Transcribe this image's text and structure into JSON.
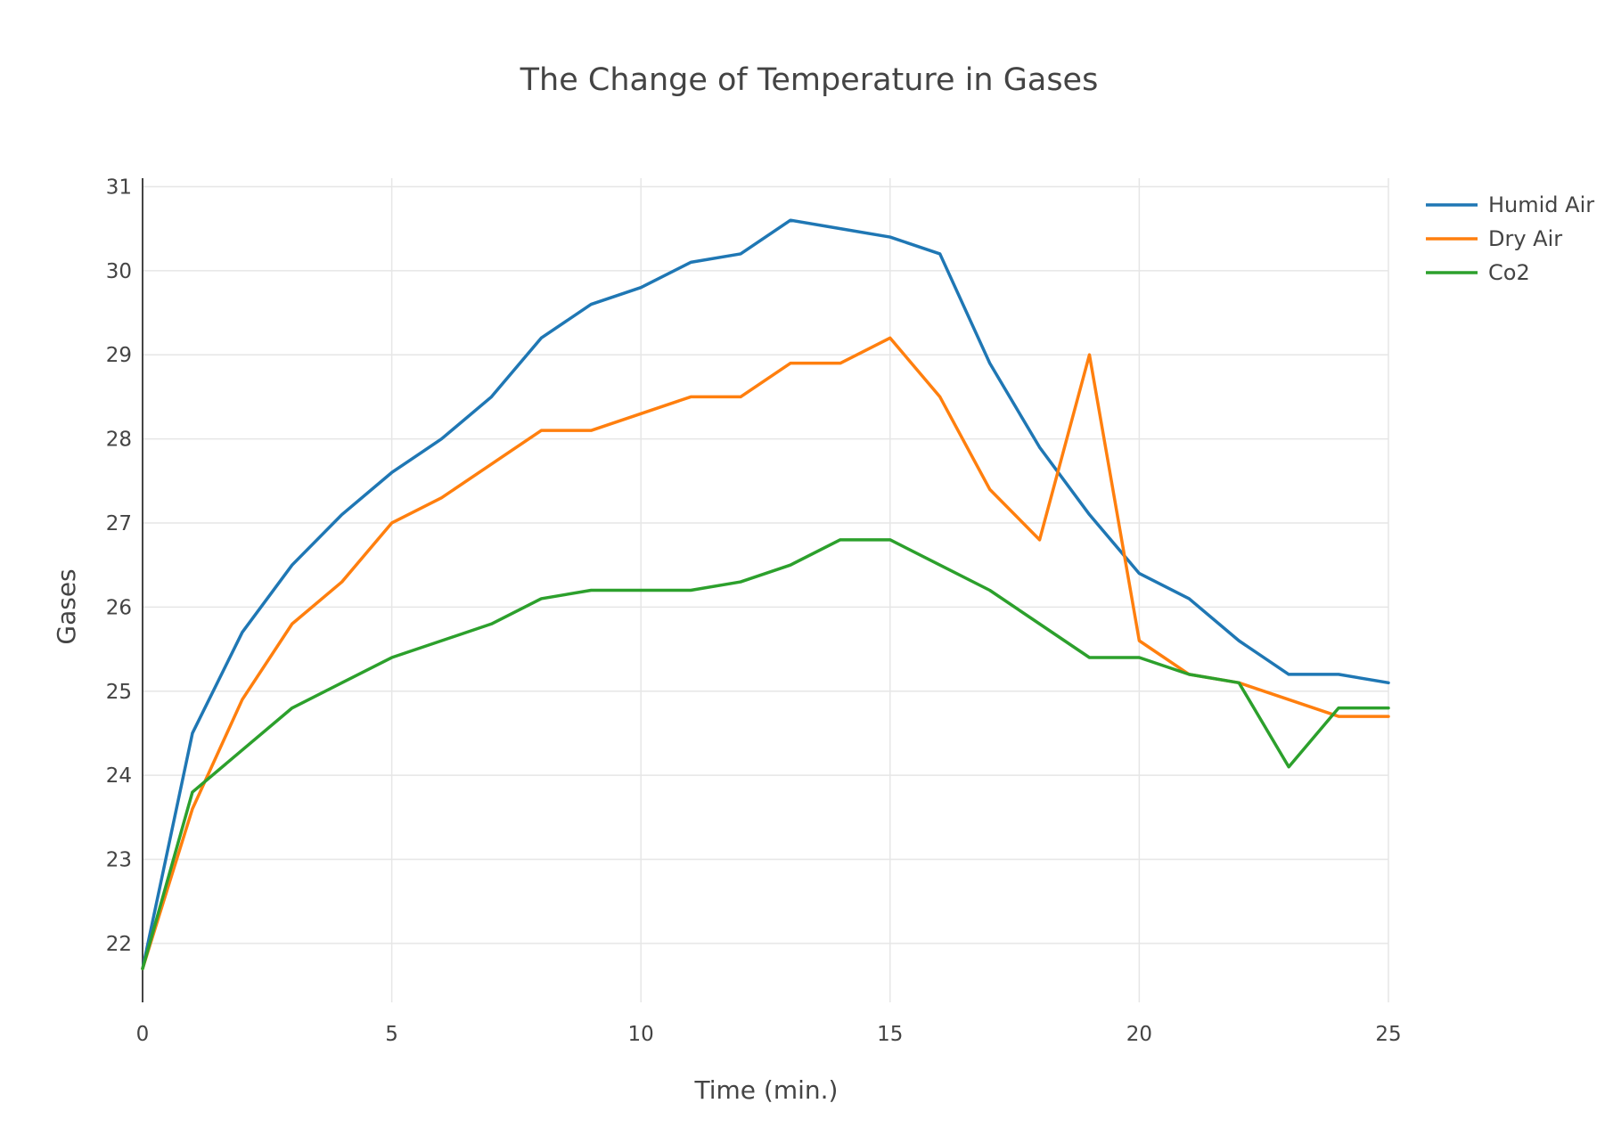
{
  "chart_data": {
    "type": "line",
    "title": "The Change of Temperature in Gases",
    "xlabel": "Time (min.)",
    "ylabel": "Gases",
    "xlim": [
      0,
      25
    ],
    "ylim": [
      21.3,
      31.1
    ],
    "x_ticks": [
      0,
      5,
      10,
      15,
      20,
      25
    ],
    "y_ticks": [
      22,
      23,
      24,
      25,
      26,
      27,
      28,
      29,
      30,
      31
    ],
    "grid": true,
    "legend_position": "top-right",
    "x": [
      0,
      1,
      2,
      3,
      4,
      5,
      6,
      7,
      8,
      9,
      10,
      11,
      12,
      13,
      14,
      15,
      16,
      17,
      18,
      19,
      20,
      21,
      22,
      23,
      24,
      25
    ],
    "series": [
      {
        "name": "Humid Air",
        "color": "#1f77b4",
        "values": [
          21.7,
          24.5,
          25.7,
          26.5,
          27.1,
          27.6,
          28.0,
          28.5,
          29.2,
          29.6,
          29.8,
          30.1,
          30.2,
          30.6,
          30.5,
          30.4,
          30.2,
          28.9,
          27.9,
          27.1,
          26.4,
          26.1,
          25.6,
          25.2,
          25.2,
          25.1
        ]
      },
      {
        "name": "Dry Air",
        "color": "#ff7f0e",
        "values": [
          21.7,
          23.6,
          24.9,
          25.8,
          26.3,
          27.0,
          27.3,
          27.7,
          28.1,
          28.1,
          28.3,
          28.5,
          28.5,
          28.9,
          28.9,
          29.2,
          28.5,
          27.4,
          26.8,
          29.0,
          25.6,
          25.2,
          25.1,
          24.9,
          24.7,
          24.7
        ]
      },
      {
        "name": "Co2",
        "color": "#2ca02c",
        "values": [
          21.7,
          23.8,
          24.3,
          24.8,
          25.1,
          25.4,
          25.6,
          25.8,
          26.1,
          26.2,
          26.2,
          26.2,
          26.3,
          26.5,
          26.8,
          26.8,
          26.5,
          26.2,
          25.8,
          25.4,
          25.4,
          25.2,
          25.1,
          24.1,
          24.8,
          24.8
        ]
      }
    ]
  }
}
